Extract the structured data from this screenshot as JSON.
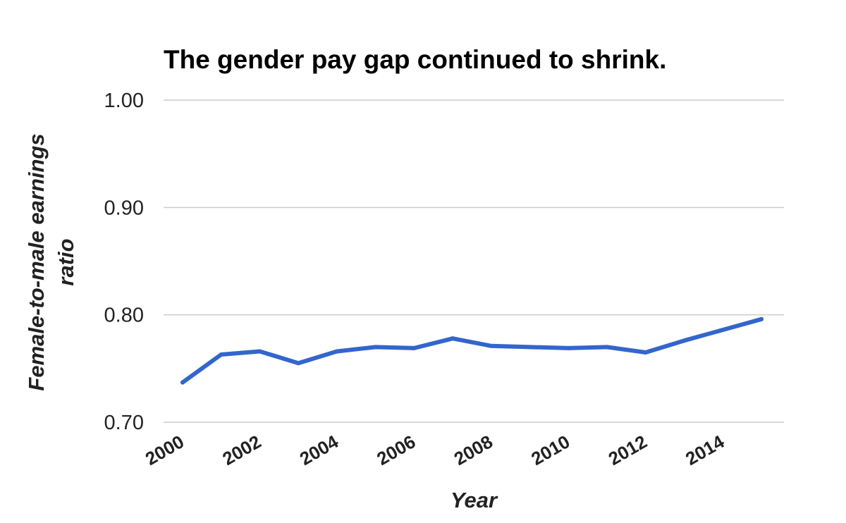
{
  "chart_data": {
    "type": "line",
    "title": "The gender pay gap continued to shrink.",
    "xlabel": "Year",
    "ylabel_lines": [
      "Female-to-male earnings",
      "ratio"
    ],
    "x": [
      2000,
      2001,
      2002,
      2003,
      2004,
      2005,
      2006,
      2007,
      2008,
      2009,
      2010,
      2011,
      2012,
      2013,
      2014,
      2015
    ],
    "series": [
      {
        "values": [
          0.737,
          0.763,
          0.766,
          0.755,
          0.766,
          0.77,
          0.769,
          0.778,
          0.771,
          0.77,
          0.769,
          0.77,
          0.765,
          0.776,
          0.786,
          0.796
        ]
      }
    ],
    "xlim": [
      2000,
      2015
    ],
    "ylim": [
      0.7,
      1.0
    ],
    "y_ticks": [
      "0.70",
      "0.80",
      "0.90",
      "1.00"
    ],
    "y_tick_values": [
      0.7,
      0.8,
      0.9,
      1.0
    ],
    "x_ticks": [
      "2000",
      "2002",
      "2004",
      "2006",
      "2008",
      "2010",
      "2012",
      "2014"
    ],
    "x_tick_values": [
      2000,
      2002,
      2004,
      2006,
      2008,
      2010,
      2012,
      2014
    ],
    "grid": true,
    "legend": "none",
    "colors": {
      "series": "#3366cc",
      "grid": "#cccccc",
      "text": "#222222"
    }
  }
}
